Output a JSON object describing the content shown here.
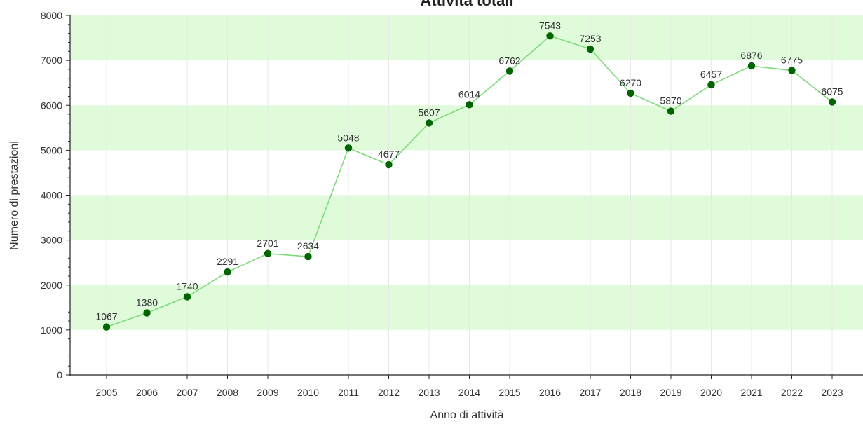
{
  "chart_data": {
    "type": "line",
    "title": "Attività totali",
    "xlabel": "Anno di attività",
    "ylabel": "Numero di prestazioni",
    "ylim": [
      0,
      8000
    ],
    "yticks": [
      "0",
      "1000",
      "2000",
      "3000",
      "4000",
      "5000",
      "6000",
      "7000",
      "8000"
    ],
    "categories": [
      "2005",
      "2006",
      "2007",
      "2008",
      "2009",
      "2010",
      "2011",
      "2012",
      "2013",
      "2014",
      "2015",
      "2016",
      "2017",
      "2018",
      "2019",
      "2020",
      "2021",
      "2022",
      "2023"
    ],
    "values": [
      1067,
      1380,
      1740,
      2291,
      2701,
      2634,
      5048,
      4677,
      5607,
      6014,
      6762,
      7543,
      7253,
      6270,
      5870,
      6457,
      6876,
      6775,
      6075
    ],
    "grid": true,
    "band_fill_color": "#e0fbd9",
    "line_color": "#7ddb7a",
    "marker_color": "#006400"
  }
}
